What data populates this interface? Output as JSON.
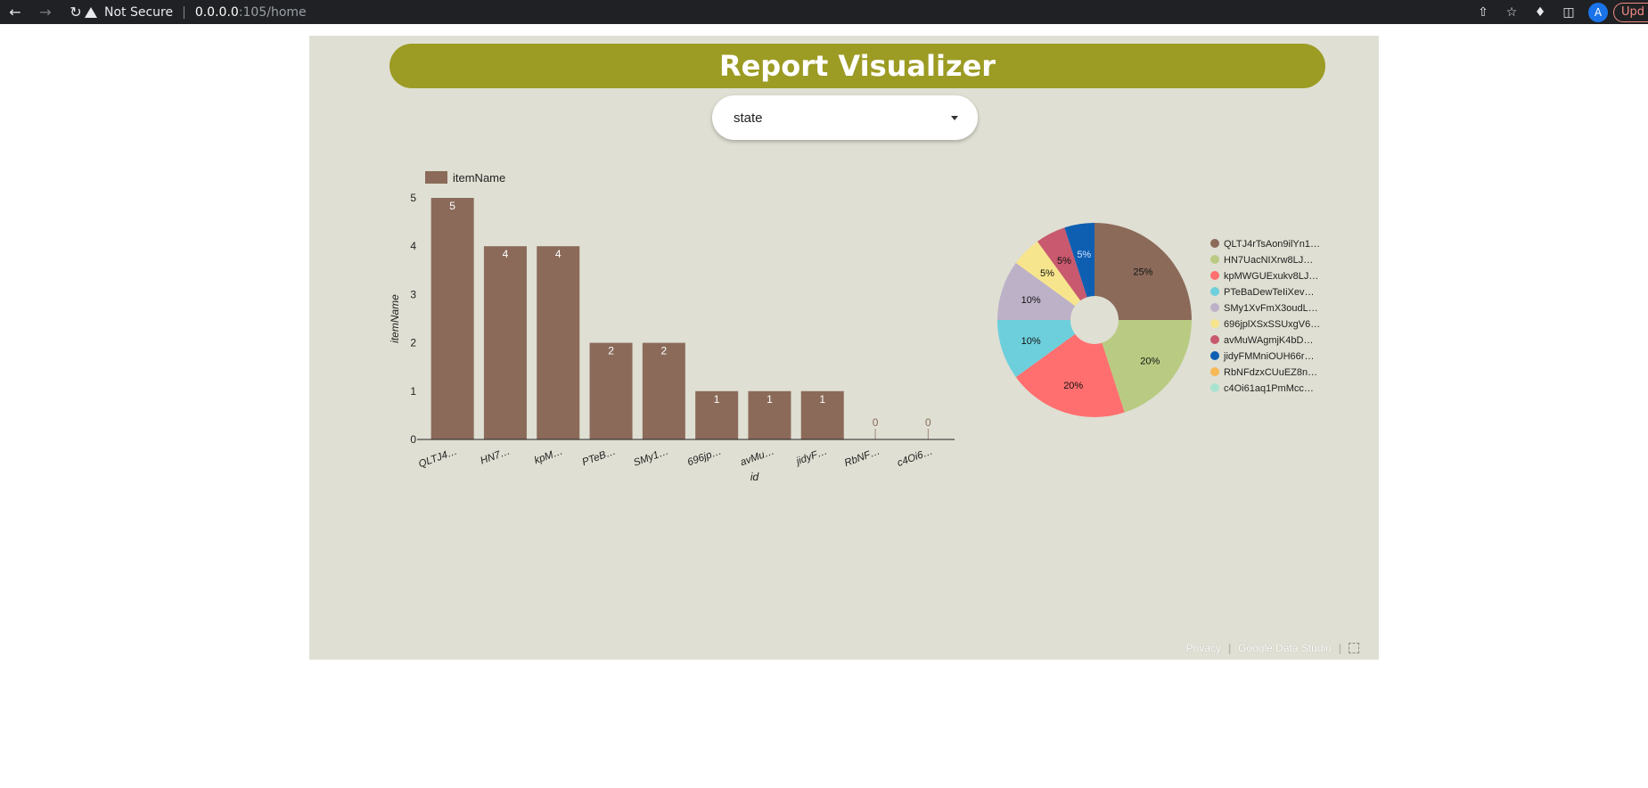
{
  "browser": {
    "security_label": "Not Secure",
    "url_host": "0.0.0.0",
    "url_path": ":105/home",
    "avatar_letter": "A",
    "update_label": "Upd"
  },
  "report": {
    "title": "Report Visualizer",
    "dropdown_value": "state",
    "footer_privacy": "Privacy",
    "footer_brand": "Google Data Studio",
    "colors": {
      "canvas": "#dfdfd3",
      "title_bar": "#9c9b24",
      "bar": "#8b6a5a"
    }
  },
  "chart_data": [
    {
      "type": "bar",
      "categories": [
        "QLTJ4…",
        "HN7…",
        "kpM…",
        "PTeB…",
        "SMy1…",
        "696jp…",
        "avMu…",
        "jidyF…",
        "RbNF…",
        "c4Oi6…"
      ],
      "values": [
        5,
        4,
        4,
        2,
        2,
        1,
        1,
        1,
        0,
        0
      ],
      "legend": [
        "itemName"
      ],
      "xlabel": "id",
      "ylabel": "itemName",
      "ylim": [
        0,
        5
      ],
      "yticks": [
        0,
        1,
        2,
        3,
        4,
        5
      ],
      "legend_position": "top-left",
      "grid": false,
      "color": "#8b6a5a"
    },
    {
      "type": "pie",
      "donut": true,
      "legend_position": "right",
      "slices": [
        {
          "label": "QLTJ4rTsAon9ilYn1…",
          "value": 25,
          "pct_label": "25%",
          "color": "#8b6a5a"
        },
        {
          "label": "HN7UacNIXrw8LJ…",
          "value": 20,
          "pct_label": "20%",
          "color": "#b9cb82"
        },
        {
          "label": "kpMWGUExukv8LJ…",
          "value": 20,
          "pct_label": "20%",
          "color": "#ff6f6f"
        },
        {
          "label": "PTeBaDewTeIiXev…",
          "value": 10,
          "pct_label": "10%",
          "color": "#6dcfdc"
        },
        {
          "label": "SMy1XvFmX3oudL…",
          "value": 10,
          "pct_label": "10%",
          "color": "#bdb1c8"
        },
        {
          "label": "696jplXSxSSUxgV6…",
          "value": 5,
          "pct_label": "5%",
          "color": "#f7e58d"
        },
        {
          "label": "avMuWAgmjK4bD…",
          "value": 5,
          "pct_label": "5%",
          "color": "#c8596f"
        },
        {
          "label": "jidyFMMniOUH66r…",
          "value": 5,
          "pct_label": "5%",
          "color": "#0e5fb2"
        },
        {
          "label": "RbNFdzxCUuEZ8n…",
          "value": 0,
          "pct_label": "",
          "color": "#f7b955"
        },
        {
          "label": "c4Oi61aq1PmMcc…",
          "value": 0,
          "pct_label": "",
          "color": "#a9e3cf"
        }
      ]
    }
  ]
}
